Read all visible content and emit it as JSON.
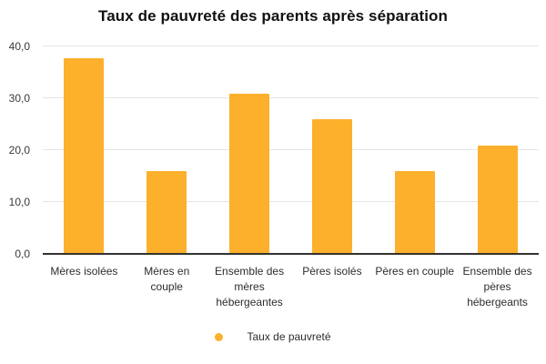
{
  "title": "Taux de pauvreté des parents après séparation",
  "legend": {
    "label": "Taux de pauvreté",
    "marker_color": "#FCB02C"
  },
  "colors": {
    "bar": "#FCB02C",
    "grid": "#E6E6E6",
    "axis": "#333231",
    "tick_text": "#3B3A39",
    "title_text": "#111111"
  },
  "chart_data": {
    "type": "bar",
    "title": "Taux de pauvreté des parents après séparation",
    "categories": [
      "Mères isolées",
      "Mères en couple",
      "Ensemble des mères hébergeantes",
      "Pères isolés",
      "Pères en couple",
      "Ensemble des pères hébergeants"
    ],
    "series": [
      {
        "name": "Taux de pauvreté",
        "values": [
          37.8,
          15.9,
          30.8,
          25.9,
          15.9,
          20.9
        ]
      }
    ],
    "xlabel": "",
    "ylabel": "",
    "ylim": [
      0,
      40
    ],
    "ytick_values": [
      0,
      10,
      20,
      30,
      40
    ],
    "ytick_labels": [
      "0,0",
      "10,0",
      "20,0",
      "30,0",
      "40,0"
    ],
    "grid": true,
    "legend_position": "bottom"
  }
}
